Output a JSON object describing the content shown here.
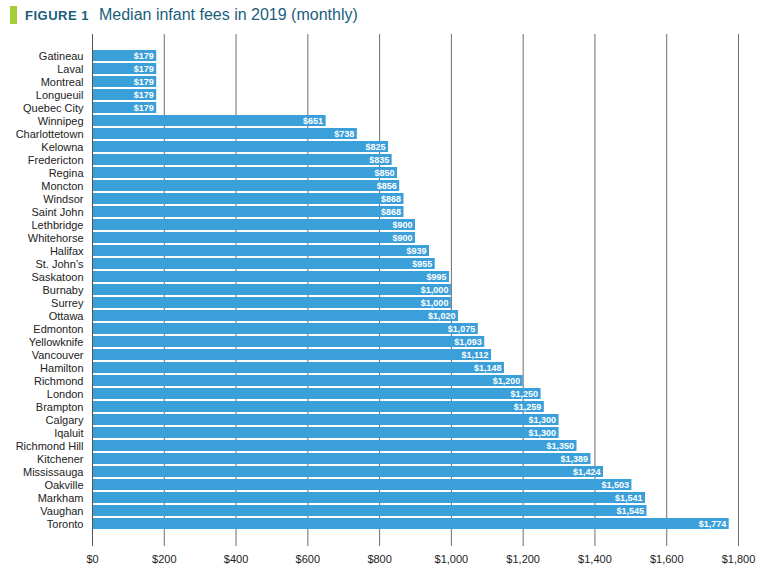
{
  "chart_data": {
    "type": "bar",
    "orientation": "horizontal",
    "figure_label": "FIGURE 1",
    "title": "Median infant fees in 2019 (monthly)",
    "categories": [
      "Gatineau",
      "Laval",
      "Montreal",
      "Longueuil",
      "Quebec City",
      "Winnipeg",
      "Charlottetown",
      "Kelowna",
      "Fredericton",
      "Regina",
      "Moncton",
      "Windsor",
      "Saint John",
      "Lethbridge",
      "Whitehorse",
      "Halifax",
      "St. John’s",
      "Saskatoon",
      "Burnaby",
      "Surrey",
      "Ottawa",
      "Edmonton",
      "Yellowknife",
      "Vancouver",
      "Hamilton",
      "Richmond",
      "London",
      "Brampton",
      "Calgary",
      "Iqaluit",
      "Richmond Hill",
      "Kitchener",
      "Mississauga",
      "Oakville",
      "Markham",
      "Vaughan",
      "Toronto"
    ],
    "values": [
      179,
      179,
      179,
      179,
      179,
      651,
      738,
      825,
      835,
      850,
      856,
      868,
      868,
      900,
      900,
      939,
      955,
      995,
      1000,
      1000,
      1020,
      1075,
      1093,
      1112,
      1148,
      1200,
      1250,
      1259,
      1300,
      1300,
      1350,
      1389,
      1424,
      1503,
      1541,
      1545,
      1774
    ],
    "value_labels": [
      "$179",
      "$179",
      "$179",
      "$179",
      "$179",
      "$651",
      "$738",
      "$825",
      "$835",
      "$850",
      "$856",
      "$868",
      "$868",
      "$900",
      "$900",
      "$939",
      "$955",
      "$995",
      "$1,000",
      "$1,000",
      "$1,020",
      "$1,075",
      "$1,093",
      "$1,112",
      "$1,148",
      "$1,200",
      "$1,250",
      "$1,259",
      "$1,300",
      "$1,300",
      "$1,350",
      "$1,389",
      "$1,424",
      "$1,503",
      "$1,541",
      "$1,545",
      "$1,774"
    ],
    "data_labels": true,
    "color": "#3b9fd9",
    "xlim": [
      0,
      1800
    ],
    "xticks": [
      {
        "value": 0,
        "label": "$0"
      },
      {
        "value": 200,
        "label": "$200"
      },
      {
        "value": 400,
        "label": "$400"
      },
      {
        "value": 600,
        "label": "$600"
      },
      {
        "value": 800,
        "label": "$800"
      },
      {
        "value": 1000,
        "label": "$1,000"
      },
      {
        "value": 1200,
        "label": "$1,200"
      },
      {
        "value": 1400,
        "label": "$1,400"
      },
      {
        "value": 1600,
        "label": "$1,600"
      },
      {
        "value": 1800,
        "label": "$1,800"
      }
    ],
    "grid": true
  }
}
